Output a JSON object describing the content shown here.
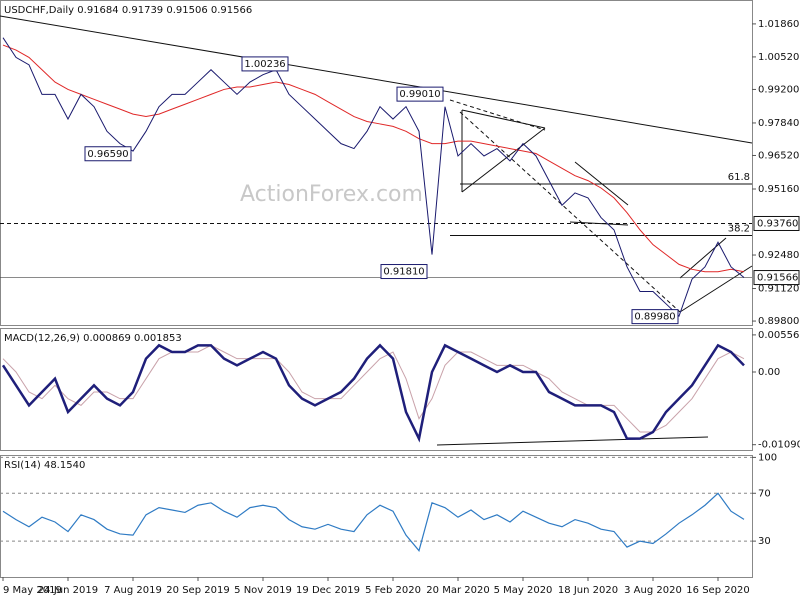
{
  "chart_data": [
    {
      "type": "line",
      "title": "USDCHF,Daily  0.91684 0.91739 0.91506 0.91566",
      "watermark": "ActionForex.com",
      "ylim": [
        0.8964,
        1.0283
      ],
      "yticks": [
        {
          "value": 1.0186,
          "label": "1.01860"
        },
        {
          "value": 1.0052,
          "label": "1.00520"
        },
        {
          "value": 0.992,
          "label": "0.99200"
        },
        {
          "value": 0.9784,
          "label": "0.97840"
        },
        {
          "value": 0.9652,
          "label": "0.96520"
        },
        {
          "value": 0.9516,
          "label": "0.95160"
        },
        {
          "value": 0.9248,
          "label": "0.92480"
        },
        {
          "value": 0.9112,
          "label": "0.91120"
        },
        {
          "value": 0.898,
          "label": "0.89800"
        }
      ],
      "grid": false,
      "series": [
        {
          "name": "Close",
          "color": "#1a1a6e",
          "values": [
            1.013,
            1.005,
            1.002,
            0.99,
            0.99,
            0.98,
            0.99,
            0.985,
            0.975,
            0.97,
            0.967,
            0.975,
            0.985,
            0.99,
            0.99,
            0.995,
            1.0,
            0.995,
            0.99,
            0.995,
            0.998,
            1.0,
            0.99,
            0.985,
            0.98,
            0.975,
            0.97,
            0.968,
            0.975,
            0.985,
            0.98,
            0.985,
            0.975,
            0.925,
            0.985,
            0.965,
            0.97,
            0.965,
            0.968,
            0.963,
            0.97,
            0.965,
            0.955,
            0.945,
            0.95,
            0.948,
            0.94,
            0.935,
            0.92,
            0.91,
            0.91,
            0.905,
            0.9,
            0.915,
            0.92,
            0.93,
            0.92,
            0.91566
          ]
        },
        {
          "name": "SMA",
          "color": "#e02828",
          "values": [
            1.01,
            1.008,
            1.005,
            1.0,
            0.995,
            0.992,
            0.99,
            0.988,
            0.986,
            0.984,
            0.982,
            0.981,
            0.982,
            0.984,
            0.986,
            0.988,
            0.99,
            0.992,
            0.993,
            0.993,
            0.994,
            0.995,
            0.994,
            0.992,
            0.99,
            0.987,
            0.984,
            0.981,
            0.979,
            0.978,
            0.977,
            0.975,
            0.972,
            0.97,
            0.97,
            0.971,
            0.971,
            0.97,
            0.969,
            0.968,
            0.967,
            0.966,
            0.963,
            0.96,
            0.957,
            0.955,
            0.952,
            0.948,
            0.942,
            0.935,
            0.929,
            0.925,
            0.921,
            0.919,
            0.918,
            0.918,
            0.919,
            0.918
          ]
        }
      ],
      "annotations": [
        1.00236,
        {
          "value": 0.9659,
          "label": "0.96590"
        },
        {
          "value": 0.9901,
          "label": "0.99010"
        },
        {
          "value": 0.9181,
          "label": "0.91810"
        },
        {
          "value": 0.8998,
          "label": "0.89980"
        }
      ],
      "levels": [
        {
          "value": 0.9376,
          "label": "0.93760"
        },
        0.91566
      ],
      "fib_levels": [
        {
          "ratio": 61.8,
          "level": 0.9536
        },
        {
          "ratio": 38.2,
          "level": 0.9327
        }
      ]
    },
    {
      "type": "line",
      "title": "MACD(12,26,9) 0.000869 0.001853",
      "ylim": [
        -0.0117,
        0.0066
      ],
      "yticks": [
        0.005566,
        {
          "value": 0,
          "label": "0.00"
        },
        -0.010903
      ],
      "grid": false,
      "series": [
        {
          "name": "MACD",
          "color": "#1f1f7a",
          "values": [
            0.001,
            -0.002,
            -0.005,
            -0.003,
            -0.001,
            -0.006,
            -0.004,
            -0.002,
            -0.004,
            -0.005,
            -0.003,
            0.002,
            0.004,
            0.003,
            0.003,
            0.004,
            0.004,
            0.002,
            0.001,
            0.002,
            0.003,
            0.002,
            -0.002,
            -0.004,
            -0.005,
            -0.004,
            -0.003,
            -0.001,
            0.002,
            0.004,
            0.002,
            -0.006,
            -0.01,
            0.0,
            0.004,
            0.003,
            0.002,
            0.001,
            0.0,
            0.001,
            0.0,
            0.0,
            -0.003,
            -0.004,
            -0.005,
            -0.005,
            -0.005,
            -0.006,
            -0.01,
            -0.01,
            -0.009,
            -0.006,
            -0.004,
            -0.002,
            0.001,
            0.004,
            0.003,
            0.001
          ]
        },
        {
          "name": "Signal",
          "color": "#c9a2aa",
          "values": [
            0.002,
            0.0,
            -0.003,
            -0.004,
            -0.002,
            -0.004,
            -0.005,
            -0.003,
            -0.003,
            -0.004,
            -0.004,
            -0.001,
            0.002,
            0.003,
            0.003,
            0.003,
            0.004,
            0.003,
            0.002,
            0.002,
            0.002,
            0.002,
            0.0,
            -0.003,
            -0.004,
            -0.004,
            -0.004,
            -0.002,
            0.0,
            0.002,
            0.003,
            -0.001,
            -0.007,
            -0.004,
            0.001,
            0.003,
            0.003,
            0.002,
            0.001,
            0.001,
            0.001,
            0.0,
            -0.001,
            -0.003,
            -0.004,
            -0.005,
            -0.005,
            -0.005,
            -0.007,
            -0.009,
            -0.009,
            -0.008,
            -0.006,
            -0.004,
            -0.001,
            0.002,
            0.003,
            0.002
          ]
        }
      ]
    },
    {
      "type": "line",
      "title": "RSI(14) 48.1540",
      "ylim": [
        0,
        102
      ],
      "yticks": [
        100,
        70,
        30
      ],
      "grid": true,
      "categories": [
        "9 May 2019",
        null,
        null,
        null,
        null,
        "24 Jun 2019",
        null,
        null,
        null,
        null,
        "7 Aug 2019",
        null,
        null,
        null,
        null,
        "20 Sep 2019",
        null,
        null,
        null,
        null,
        "5 Nov 2019",
        null,
        null,
        null,
        null,
        "19 Dec 2019",
        null,
        null,
        null,
        null,
        "5 Feb 2020",
        null,
        null,
        null,
        null,
        "20 Mar 2020",
        null,
        null,
        null,
        null,
        "5 May 2020",
        null,
        null,
        null,
        null,
        "18 Jun 2020",
        null,
        null,
        null,
        null,
        "3 Aug 2020",
        null,
        null,
        null,
        null,
        "16 Sep 2020",
        null,
        null
      ],
      "series": [
        {
          "name": "RSI",
          "color": "#2f7bc4",
          "values": [
            55,
            48,
            42,
            50,
            46,
            38,
            52,
            48,
            40,
            36,
            35,
            52,
            58,
            56,
            54,
            60,
            62,
            55,
            50,
            58,
            60,
            58,
            48,
            42,
            40,
            44,
            40,
            38,
            52,
            60,
            55,
            35,
            22,
            62,
            58,
            50,
            56,
            48,
            52,
            46,
            55,
            50,
            45,
            42,
            48,
            45,
            40,
            38,
            25,
            30,
            28,
            36,
            45,
            52,
            60,
            70,
            55,
            48.154
          ]
        }
      ]
    }
  ]
}
